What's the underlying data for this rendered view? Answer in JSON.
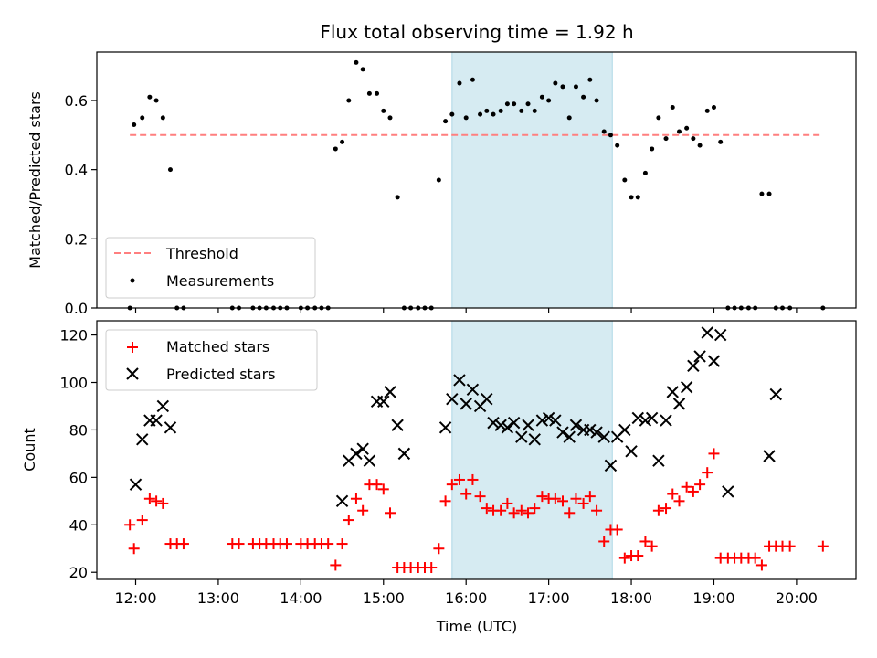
{
  "chart_data": [
    {
      "type": "scatter",
      "title": "Flux total observing time = 1.92 h",
      "ylabel": "Matched/Predicted stars",
      "xlabel": "",
      "xlim": [
        11.53,
        20.72
      ],
      "ylim": [
        0,
        0.74
      ],
      "yticks": [
        "0.0",
        "0.2",
        "0.4",
        "0.6"
      ],
      "ytick_values": [
        0,
        0.2,
        0.4,
        0.6
      ],
      "shaded_region": {
        "x": [
          15.83,
          17.77
        ],
        "color": "#add8e6"
      },
      "threshold": {
        "name": "Threshold",
        "y": 0.5,
        "x": [
          11.93,
          20.32
        ],
        "color": "#ff7f7f"
      },
      "legend": {
        "placement": "lower-left",
        "entries": [
          "Threshold",
          "Measurements"
        ]
      },
      "series": [
        {
          "name": "Measurements",
          "marker": "dot",
          "color": "#000000",
          "x": [
            11.93,
            11.98,
            12.08,
            12.17,
            12.25,
            12.33,
            12.42,
            12.5,
            12.58,
            13.17,
            13.25,
            13.42,
            13.5,
            13.58,
            13.67,
            13.75,
            13.83,
            14.0,
            14.08,
            14.17,
            14.25,
            14.33,
            14.42,
            14.5,
            14.58,
            14.67,
            14.75,
            14.83,
            14.92,
            15.0,
            15.08,
            15.17,
            15.25,
            15.33,
            15.42,
            15.5,
            15.58,
            15.67,
            15.75,
            15.83,
            15.92,
            16.0,
            16.08,
            16.17,
            16.25,
            16.33,
            16.42,
            16.5,
            16.58,
            16.67,
            16.75,
            16.83,
            16.92,
            17.0,
            17.08,
            17.17,
            17.25,
            17.33,
            17.42,
            17.5,
            17.58,
            17.67,
            17.75,
            17.83,
            17.92,
            18.0,
            18.08,
            18.17,
            18.25,
            18.33,
            18.42,
            18.5,
            18.58,
            18.67,
            18.75,
            18.83,
            18.92,
            19.0,
            19.08,
            19.17,
            19.25,
            19.33,
            19.42,
            19.5,
            19.58,
            19.67,
            19.75,
            19.83,
            19.92,
            20.32
          ],
          "y": [
            0.0,
            0.53,
            0.55,
            0.61,
            0.6,
            0.55,
            0.4,
            0.0,
            0.0,
            0.0,
            0.0,
            0.0,
            0.0,
            0.0,
            0.0,
            0.0,
            0.0,
            0.0,
            0.0,
            0.0,
            0.0,
            0.0,
            0.46,
            0.48,
            0.6,
            0.71,
            0.69,
            0.62,
            0.62,
            0.57,
            0.55,
            0.32,
            0.0,
            0.0,
            0.0,
            0.0,
            0.0,
            0.37,
            0.54,
            0.56,
            0.65,
            0.55,
            0.66,
            0.56,
            0.57,
            0.56,
            0.57,
            0.59,
            0.59,
            0.57,
            0.59,
            0.57,
            0.61,
            0.6,
            0.65,
            0.64,
            0.55,
            0.64,
            0.61,
            0.66,
            0.6,
            0.51,
            0.5,
            0.47,
            0.37,
            0.32,
            0.32,
            0.39,
            0.46,
            0.55,
            0.49,
            0.58,
            0.51,
            0.52,
            0.49,
            0.47,
            0.57,
            0.58,
            0.48,
            0.0,
            0.0,
            0.0,
            0.0,
            0.0,
            0.33,
            0.33,
            0.0,
            0.0,
            0.0,
            0.0
          ]
        }
      ]
    },
    {
      "type": "scatter",
      "title": "",
      "ylabel": "Count",
      "xlabel": "Time (UTC)",
      "xlim": [
        11.53,
        20.72
      ],
      "ylim": [
        17,
        126
      ],
      "yticks": [
        "20",
        "40",
        "60",
        "80",
        "100",
        "120"
      ],
      "ytick_values": [
        20,
        40,
        60,
        80,
        100,
        120
      ],
      "xticks": [
        "12:00",
        "13:00",
        "14:00",
        "15:00",
        "16:00",
        "17:00",
        "18:00",
        "19:00",
        "20:00"
      ],
      "xtick_values": [
        12,
        13,
        14,
        15,
        16,
        17,
        18,
        19,
        20
      ],
      "shaded_region": {
        "x": [
          15.83,
          17.77
        ],
        "color": "#add8e6"
      },
      "legend": {
        "placement": "upper-left",
        "entries": [
          "Matched stars",
          "Predicted stars"
        ]
      },
      "series": [
        {
          "name": "Matched stars",
          "marker": "plus",
          "color": "#ff0000",
          "x": [
            11.93,
            11.98,
            12.08,
            12.17,
            12.25,
            12.33,
            12.42,
            12.5,
            12.58,
            13.17,
            13.25,
            13.42,
            13.5,
            13.58,
            13.67,
            13.75,
            13.83,
            14.0,
            14.08,
            14.17,
            14.25,
            14.33,
            14.42,
            14.5,
            14.58,
            14.67,
            14.75,
            14.83,
            14.92,
            15.0,
            15.08,
            15.17,
            15.25,
            15.33,
            15.42,
            15.5,
            15.58,
            15.67,
            15.75,
            15.83,
            15.92,
            16.0,
            16.08,
            16.17,
            16.25,
            16.33,
            16.42,
            16.5,
            16.58,
            16.67,
            16.75,
            16.83,
            16.92,
            17.0,
            17.08,
            17.17,
            17.25,
            17.33,
            17.42,
            17.5,
            17.58,
            17.67,
            17.75,
            17.83,
            17.92,
            18.0,
            18.08,
            18.17,
            18.25,
            18.33,
            18.42,
            18.5,
            18.58,
            18.67,
            18.75,
            18.83,
            18.92,
            19.0,
            19.08,
            19.17,
            19.25,
            19.33,
            19.42,
            19.5,
            19.58,
            19.67,
            19.75,
            19.83,
            19.92,
            20.32
          ],
          "y": [
            40,
            30,
            42,
            51,
            50,
            49,
            32,
            32,
            32,
            32,
            32,
            32,
            32,
            32,
            32,
            32,
            32,
            32,
            32,
            32,
            32,
            32,
            23,
            32,
            42,
            51,
            46,
            57,
            57,
            55,
            45,
            22,
            22,
            22,
            22,
            22,
            22,
            30,
            50,
            57,
            59,
            53,
            59,
            52,
            47,
            46,
            46,
            49,
            45,
            46,
            45,
            47,
            52,
            51,
            51,
            50,
            45,
            51,
            49,
            52,
            46,
            33,
            38,
            38,
            26,
            27,
            27,
            33,
            31,
            46,
            47,
            53,
            50,
            56,
            54,
            57,
            62,
            70,
            26,
            26,
            26,
            26,
            26,
            26,
            23,
            31,
            31,
            31,
            31,
            31
          ]
        },
        {
          "name": "Predicted stars",
          "marker": "x",
          "color": "#000000",
          "x": [
            12.0,
            12.08,
            12.17,
            12.25,
            12.33,
            12.42,
            14.5,
            14.58,
            14.67,
            14.75,
            14.83,
            14.92,
            15.0,
            15.08,
            15.17,
            15.25,
            15.75,
            15.83,
            15.92,
            16.0,
            16.08,
            16.17,
            16.25,
            16.33,
            16.42,
            16.5,
            16.58,
            16.67,
            16.75,
            16.83,
            16.92,
            17.0,
            17.08,
            17.17,
            17.25,
            17.33,
            17.42,
            17.5,
            17.58,
            17.67,
            17.75,
            17.83,
            17.92,
            18.0,
            18.08,
            18.17,
            18.25,
            18.33,
            18.42,
            18.5,
            18.58,
            18.67,
            18.75,
            18.83,
            18.92,
            19.0,
            19.08,
            19.17,
            19.67,
            19.75
          ],
          "y": [
            57,
            76,
            84,
            84,
            90,
            81,
            50,
            67,
            70,
            72,
            67,
            92,
            92,
            96,
            82,
            70,
            81,
            93,
            101,
            91,
            97,
            90,
            93,
            83,
            82,
            81,
            83,
            77,
            82,
            76,
            84,
            85,
            84,
            79,
            77,
            82,
            80,
            80,
            79,
            77,
            65,
            77,
            80,
            71,
            85,
            84,
            85,
            67,
            84,
            96,
            91,
            98,
            107,
            111,
            121,
            109,
            120,
            54,
            69,
            95
          ]
        }
      ]
    }
  ]
}
